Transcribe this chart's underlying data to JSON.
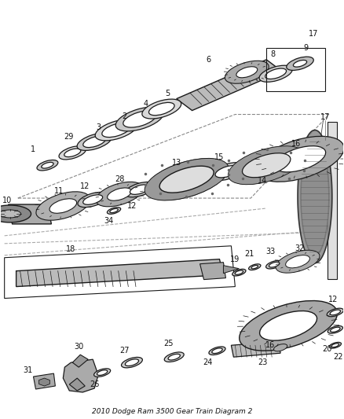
{
  "bg_color": "#ffffff",
  "line_color": "#1a1a1a",
  "label_color": "#111111",
  "title": "2010 Dodge Ram 3500 Gear Train Diagram 2"
}
